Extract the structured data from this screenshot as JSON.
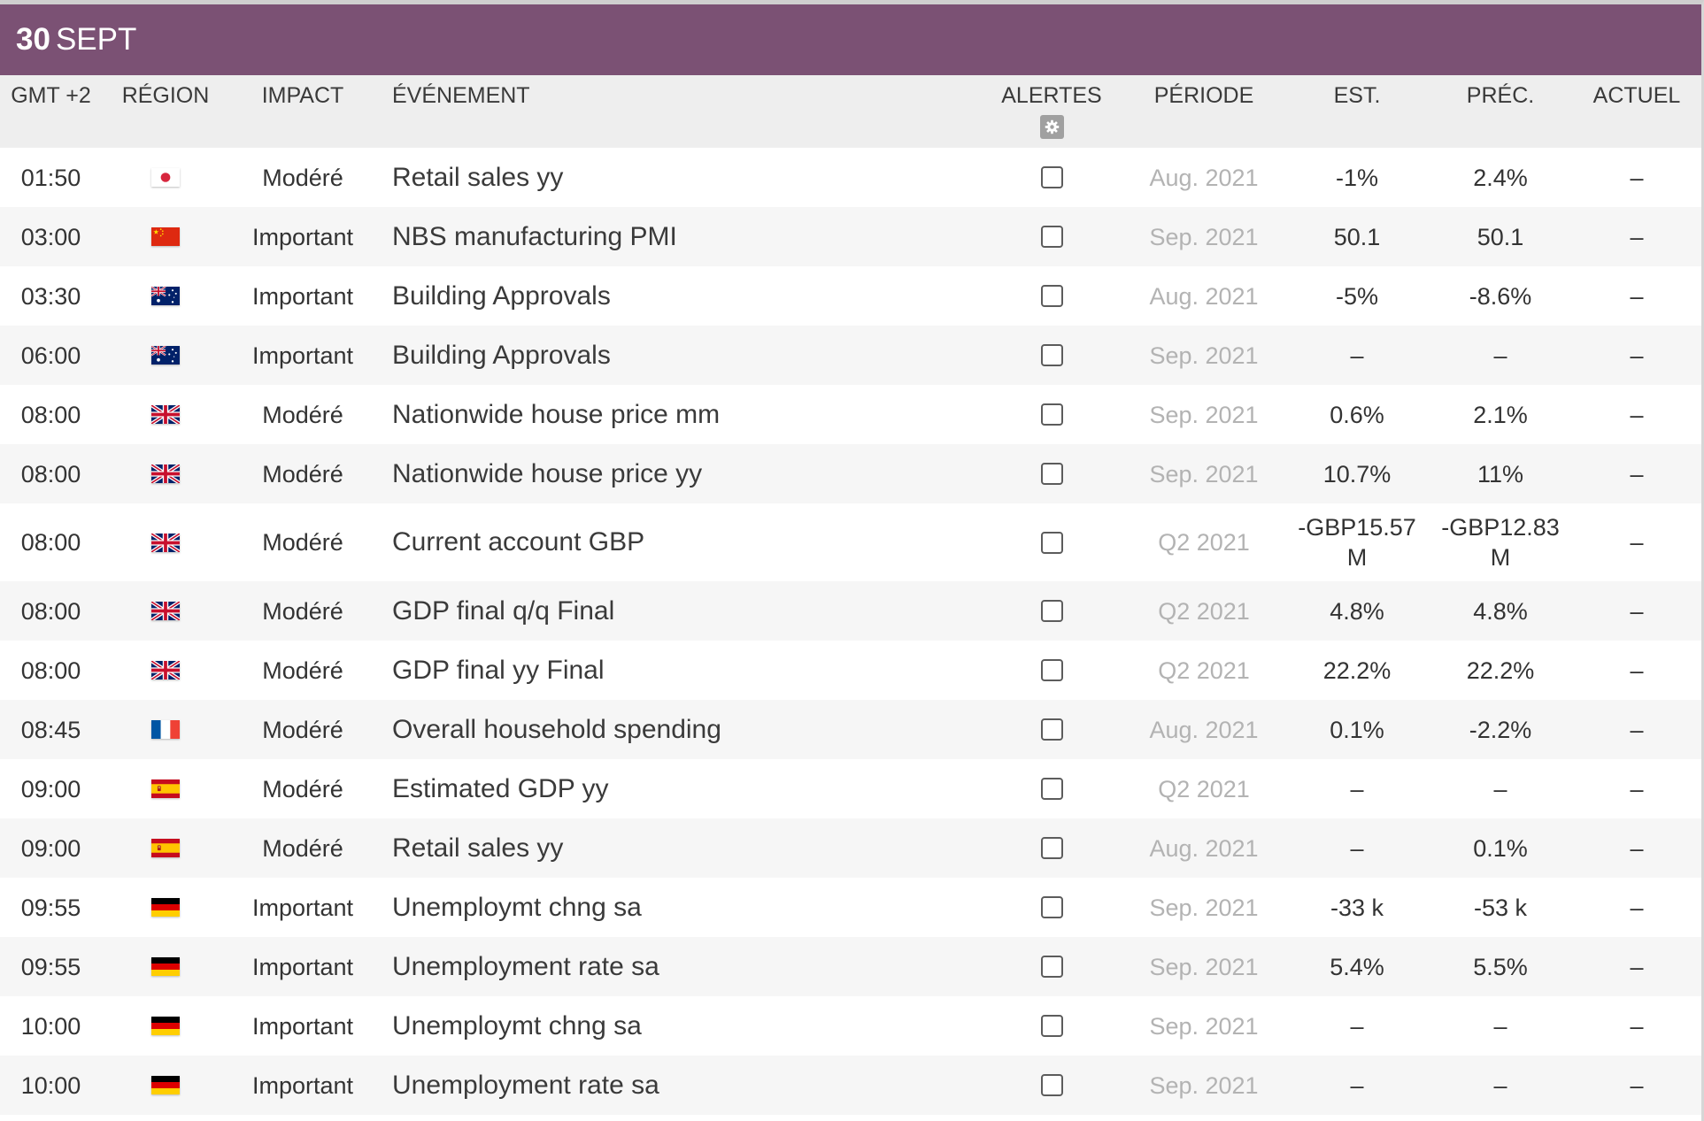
{
  "theme": {
    "accent": "#7b5174",
    "header_bg": "#eeeeee",
    "alt_row_bg": "#f6f6f6",
    "period_text": "#b3b3b3",
    "text": "#333333"
  },
  "date_header": {
    "day": "30",
    "month": "SEPT"
  },
  "columns": {
    "time": "GMT +2",
    "region": "RÉGION",
    "impact": "IMPACT",
    "event": "ÉVÉNEMENT",
    "alerts": "ALERTES",
    "period": "PÉRIODE",
    "estimate": "EST.",
    "previous": "PRÉC.",
    "actual": "ACTUEL"
  },
  "alerts_settings_icon": "gear-icon",
  "events": [
    {
      "time": "01:50",
      "region_icon": "japan-flag-icon",
      "impact": "Modéré",
      "event": "Retail sales yy",
      "alert": false,
      "period": "Aug. 2021",
      "estimate": "-1%",
      "previous": "2.4%",
      "actual": "–"
    },
    {
      "time": "03:00",
      "region_icon": "china-flag-icon",
      "impact": "Important",
      "event": "NBS manufacturing PMI",
      "alert": false,
      "period": "Sep. 2021",
      "estimate": "50.1",
      "previous": "50.1",
      "actual": "–"
    },
    {
      "time": "03:30",
      "region_icon": "australia-flag-icon",
      "impact": "Important",
      "event": "Building Approvals",
      "alert": false,
      "period": "Aug. 2021",
      "estimate": "-5%",
      "previous": "-8.6%",
      "actual": "–"
    },
    {
      "time": "06:00",
      "region_icon": "australia-flag-icon",
      "impact": "Important",
      "event": "Building Approvals",
      "alert": false,
      "period": "Sep. 2021",
      "estimate": "–",
      "previous": "–",
      "actual": "–"
    },
    {
      "time": "08:00",
      "region_icon": "uk-flag-icon",
      "impact": "Modéré",
      "event": "Nationwide house price mm",
      "alert": false,
      "period": "Sep. 2021",
      "estimate": "0.6%",
      "previous": "2.1%",
      "actual": "–"
    },
    {
      "time": "08:00",
      "region_icon": "uk-flag-icon",
      "impact": "Modéré",
      "event": "Nationwide house price yy",
      "alert": false,
      "period": "Sep. 2021",
      "estimate": "10.7%",
      "previous": "11%",
      "actual": "–"
    },
    {
      "time": "08:00",
      "region_icon": "uk-flag-icon",
      "impact": "Modéré",
      "event": "Current account GBP",
      "alert": false,
      "period": "Q2 2021",
      "estimate": "-GBP15.57 M",
      "previous": "-GBP12.83 M",
      "actual": "–"
    },
    {
      "time": "08:00",
      "region_icon": "uk-flag-icon",
      "impact": "Modéré",
      "event": "GDP final q/q Final",
      "alert": false,
      "period": "Q2 2021",
      "estimate": "4.8%",
      "previous": "4.8%",
      "actual": "–"
    },
    {
      "time": "08:00",
      "region_icon": "uk-flag-icon",
      "impact": "Modéré",
      "event": "GDP final yy Final",
      "alert": false,
      "period": "Q2 2021",
      "estimate": "22.2%",
      "previous": "22.2%",
      "actual": "–"
    },
    {
      "time": "08:45",
      "region_icon": "france-flag-icon",
      "impact": "Modéré",
      "event": "Overall household spending",
      "alert": false,
      "period": "Aug. 2021",
      "estimate": "0.1%",
      "previous": "-2.2%",
      "actual": "–"
    },
    {
      "time": "09:00",
      "region_icon": "spain-flag-icon",
      "impact": "Modéré",
      "event": "Estimated GDP yy",
      "alert": false,
      "period": "Q2 2021",
      "estimate": "–",
      "previous": "–",
      "actual": "–"
    },
    {
      "time": "09:00",
      "region_icon": "spain-flag-icon",
      "impact": "Modéré",
      "event": "Retail sales yy",
      "alert": false,
      "period": "Aug. 2021",
      "estimate": "–",
      "previous": "0.1%",
      "actual": "–"
    },
    {
      "time": "09:55",
      "region_icon": "germany-flag-icon",
      "impact": "Important",
      "event": "Unemploymt chng sa",
      "alert": false,
      "period": "Sep. 2021",
      "estimate": "-33 k",
      "previous": "-53 k",
      "actual": "–"
    },
    {
      "time": "09:55",
      "region_icon": "germany-flag-icon",
      "impact": "Important",
      "event": "Unemployment rate sa",
      "alert": false,
      "period": "Sep. 2021",
      "estimate": "5.4%",
      "previous": "5.5%",
      "actual": "–"
    },
    {
      "time": "10:00",
      "region_icon": "germany-flag-icon",
      "impact": "Important",
      "event": "Unemploymt chng sa",
      "alert": false,
      "period": "Sep. 2021",
      "estimate": "–",
      "previous": "–",
      "actual": "–"
    },
    {
      "time": "10:00",
      "region_icon": "germany-flag-icon",
      "impact": "Important",
      "event": "Unemployment rate sa",
      "alert": false,
      "period": "Sep. 2021",
      "estimate": "–",
      "previous": "–",
      "actual": "–"
    }
  ]
}
